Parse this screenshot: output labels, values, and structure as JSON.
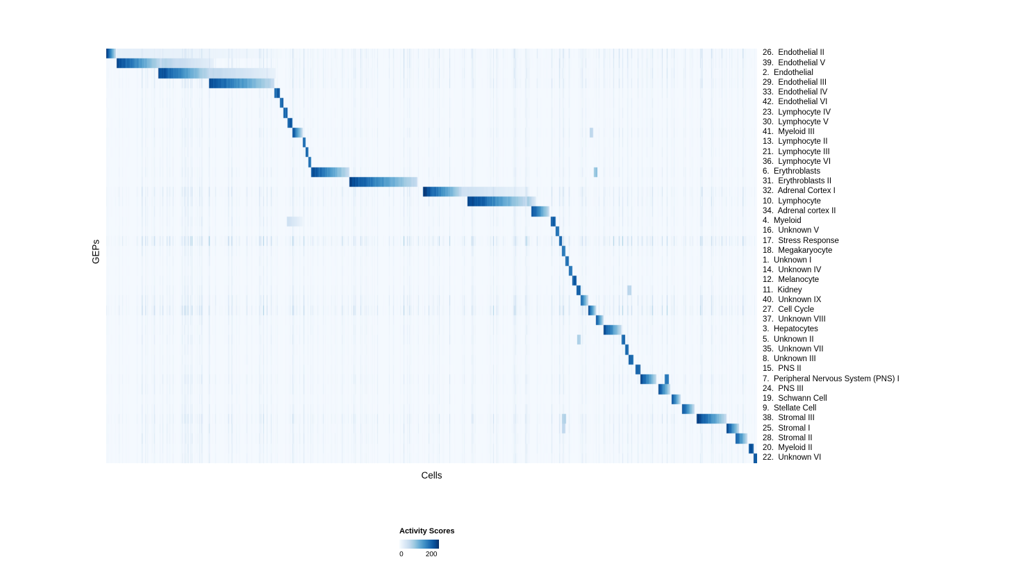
{
  "chart_data": {
    "type": "heatmap",
    "title": "",
    "xlabel": "Cells",
    "ylabel": "GEPs",
    "legend_title": "Activity Scores",
    "legend_ticks": [
      {
        "label": "0",
        "pos": 0.05
      },
      {
        "label": "200",
        "pos": 0.81
      }
    ],
    "value_range_shown": [
      0,
      200
    ],
    "colormap": {
      "name": "Blues",
      "stops": [
        "#f7fbff",
        "#deebf7",
        "#c6dbef",
        "#9ecae1",
        "#6baed6",
        "#4292c6",
        "#2171b5",
        "#08519c",
        "#08306b"
      ]
    },
    "rows_axis": "GEPs",
    "cols_axis": "Cells",
    "encoding_note": "blocks are [startFraction, endFraction, peakIntensity] along the cell axis; intensity 1.0 corresponds to the top of the activity-score scale (~200); noise is the relative strength of faint vertical background streaks in that row",
    "rows": [
      {
        "label": "26.  Endothelial II",
        "noise": 0.35,
        "blocks": [
          [
            0.0,
            0.014,
            1.0
          ],
          [
            0.016,
            0.27,
            0.1
          ]
        ]
      },
      {
        "label": "39.  Endothelial V",
        "noise": 0.3,
        "blocks": [
          [
            0.016,
            0.085,
            0.95
          ],
          [
            0.085,
            0.165,
            0.32
          ]
        ]
      },
      {
        "label": "2.  Endothelial",
        "noise": 0.3,
        "blocks": [
          [
            0.08,
            0.16,
            0.95
          ],
          [
            0.16,
            0.26,
            0.28
          ]
        ]
      },
      {
        "label": "29.  Endothelial III",
        "noise": 0.3,
        "blocks": [
          [
            0.157,
            0.258,
            0.95
          ]
        ]
      },
      {
        "label": "33.  Endothelial IV",
        "noise": 0.15,
        "blocks": [
          [
            0.258,
            0.266,
            0.9
          ]
        ]
      },
      {
        "label": "42.  Endothelial VI",
        "noise": 0.15,
        "blocks": [
          [
            0.266,
            0.272,
            0.85
          ]
        ]
      },
      {
        "label": "23.  Lymphocyte IV",
        "noise": 0.15,
        "blocks": [
          [
            0.272,
            0.278,
            0.85
          ]
        ]
      },
      {
        "label": "30.  Lymphocyte V",
        "noise": 0.15,
        "blocks": [
          [
            0.278,
            0.285,
            0.9
          ]
        ]
      },
      {
        "label": "41.  Myeloid III",
        "noise": 0.2,
        "blocks": [
          [
            0.285,
            0.301,
            0.95
          ],
          [
            0.742,
            0.748,
            0.3
          ]
        ]
      },
      {
        "label": "13.  Lymphocyte II",
        "noise": 0.15,
        "blocks": [
          [
            0.301,
            0.306,
            0.85
          ]
        ]
      },
      {
        "label": "21.  Lymphocyte III",
        "noise": 0.15,
        "blocks": [
          [
            0.306,
            0.31,
            0.85
          ]
        ]
      },
      {
        "label": "36.  Lymphocyte VI",
        "noise": 0.15,
        "blocks": [
          [
            0.31,
            0.314,
            0.8
          ]
        ]
      },
      {
        "label": "6.  Erythroblasts",
        "noise": 0.2,
        "blocks": [
          [
            0.314,
            0.373,
            0.95
          ],
          [
            0.749,
            0.754,
            0.45
          ]
        ]
      },
      {
        "label": "31.  Erythroblasts II",
        "noise": 0.15,
        "blocks": [
          [
            0.373,
            0.478,
            0.95
          ]
        ]
      },
      {
        "label": "32.  Adrenal Cortex I",
        "noise": 0.35,
        "blocks": [
          [
            0.486,
            0.546,
            1.0
          ],
          [
            0.546,
            0.648,
            0.22
          ]
        ]
      },
      {
        "label": "10.  Lymphocyte",
        "noise": 0.3,
        "blocks": [
          [
            0.554,
            0.646,
            1.0
          ],
          [
            0.646,
            0.66,
            0.4
          ]
        ]
      },
      {
        "label": "34.  Adrenal cortex II",
        "noise": 0.2,
        "blocks": [
          [
            0.653,
            0.68,
            0.95
          ]
        ]
      },
      {
        "label": "4.  Myeloid",
        "noise": 0.2,
        "blocks": [
          [
            0.682,
            0.69,
            0.9
          ],
          [
            0.277,
            0.301,
            0.22
          ]
        ]
      },
      {
        "label": "16.  Unknown V",
        "noise": 0.15,
        "blocks": [
          [
            0.69,
            0.695,
            0.85
          ]
        ]
      },
      {
        "label": "17.  Stress Response",
        "noise": 0.6,
        "blocks": [
          [
            0.695,
            0.7,
            0.9
          ]
        ]
      },
      {
        "label": "18.  Megakaryocyte",
        "noise": 0.2,
        "blocks": [
          [
            0.7,
            0.705,
            0.85
          ]
        ]
      },
      {
        "label": "1.  Unknown I",
        "noise": 0.15,
        "blocks": [
          [
            0.705,
            0.71,
            0.85
          ]
        ]
      },
      {
        "label": "14.  Unknown IV",
        "noise": 0.15,
        "blocks": [
          [
            0.71,
            0.716,
            0.85
          ]
        ]
      },
      {
        "label": "12.  Melanocyte",
        "noise": 0.15,
        "blocks": [
          [
            0.716,
            0.722,
            0.9
          ]
        ]
      },
      {
        "label": "11.  Kidney",
        "noise": 0.2,
        "blocks": [
          [
            0.722,
            0.728,
            0.9
          ],
          [
            0.8,
            0.806,
            0.3
          ]
        ]
      },
      {
        "label": "40.  Unknown IX",
        "noise": 0.35,
        "blocks": [
          [
            0.728,
            0.74,
            0.9
          ]
        ]
      },
      {
        "label": "27.  Cell Cycle",
        "noise": 0.5,
        "blocks": [
          [
            0.74,
            0.752,
            0.95
          ]
        ]
      },
      {
        "label": "37.  Unknown VIII",
        "noise": 0.2,
        "blocks": [
          [
            0.752,
            0.764,
            0.9
          ]
        ]
      },
      {
        "label": "3.  Hepatocytes",
        "noise": 0.2,
        "blocks": [
          [
            0.764,
            0.791,
            0.95
          ]
        ]
      },
      {
        "label": "5.  Unknown II",
        "noise": 0.2,
        "blocks": [
          [
            0.791,
            0.797,
            0.85
          ],
          [
            0.723,
            0.728,
            0.35
          ]
        ]
      },
      {
        "label": "35.  Unknown VII",
        "noise": 0.15,
        "blocks": [
          [
            0.797,
            0.802,
            0.85
          ]
        ]
      },
      {
        "label": "8.  Unknown III",
        "noise": 0.15,
        "blocks": [
          [
            0.802,
            0.809,
            0.85
          ]
        ]
      },
      {
        "label": "15.  PNS II",
        "noise": 0.15,
        "blocks": [
          [
            0.813,
            0.82,
            0.9
          ]
        ]
      },
      {
        "label": "7.  Peripheral Nervous System (PNS) I",
        "noise": 0.25,
        "blocks": [
          [
            0.82,
            0.845,
            1.0
          ],
          [
            0.857,
            0.864,
            0.75
          ]
        ]
      },
      {
        "label": "24.  PNS III",
        "noise": 0.2,
        "blocks": [
          [
            0.848,
            0.866,
            0.95
          ]
        ]
      },
      {
        "label": "19.  Schwann Cell",
        "noise": 0.15,
        "blocks": [
          [
            0.868,
            0.882,
            0.95
          ]
        ]
      },
      {
        "label": "9.  Stellate Cell",
        "noise": 0.2,
        "blocks": [
          [
            0.884,
            0.903,
            0.95
          ]
        ]
      },
      {
        "label": "38.  Stromal III",
        "noise": 0.35,
        "blocks": [
          [
            0.907,
            0.952,
            1.0
          ],
          [
            0.7,
            0.706,
            0.35
          ]
        ]
      },
      {
        "label": "25.  Stromal I",
        "noise": 0.25,
        "blocks": [
          [
            0.953,
            0.972,
            0.95
          ],
          [
            0.7,
            0.705,
            0.28
          ]
        ]
      },
      {
        "label": "28.  Stromal II",
        "noise": 0.25,
        "blocks": [
          [
            0.966,
            0.985,
            0.9
          ]
        ]
      },
      {
        "label": "20.  Myeloid II",
        "noise": 0.2,
        "blocks": [
          [
            0.987,
            0.994,
            0.9
          ]
        ]
      },
      {
        "label": "22.  Unknown VI",
        "noise": 0.2,
        "blocks": [
          [
            0.994,
            1.0,
            0.95
          ]
        ]
      }
    ]
  }
}
